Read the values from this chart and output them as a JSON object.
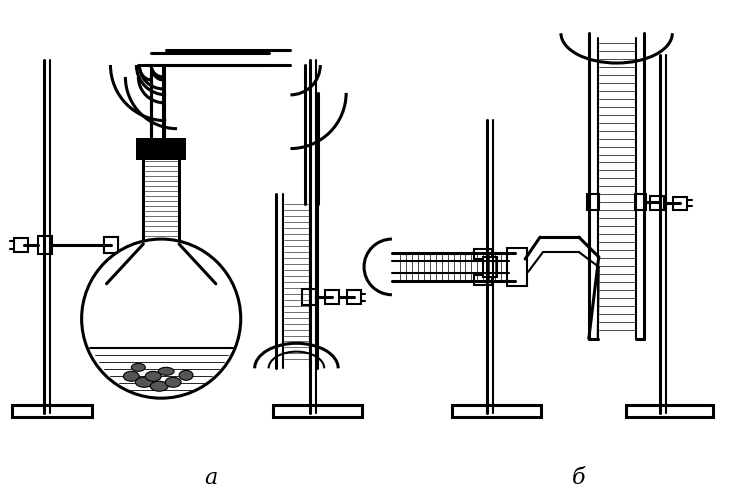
{
  "bg_color": "#ffffff",
  "line_color": "#000000",
  "label_a": "a",
  "label_b": "б",
  "fig_width": 7.48,
  "fig_height": 5.02,
  "lw": 1.5,
  "lw2": 2.2,
  "lw3": 3.0
}
